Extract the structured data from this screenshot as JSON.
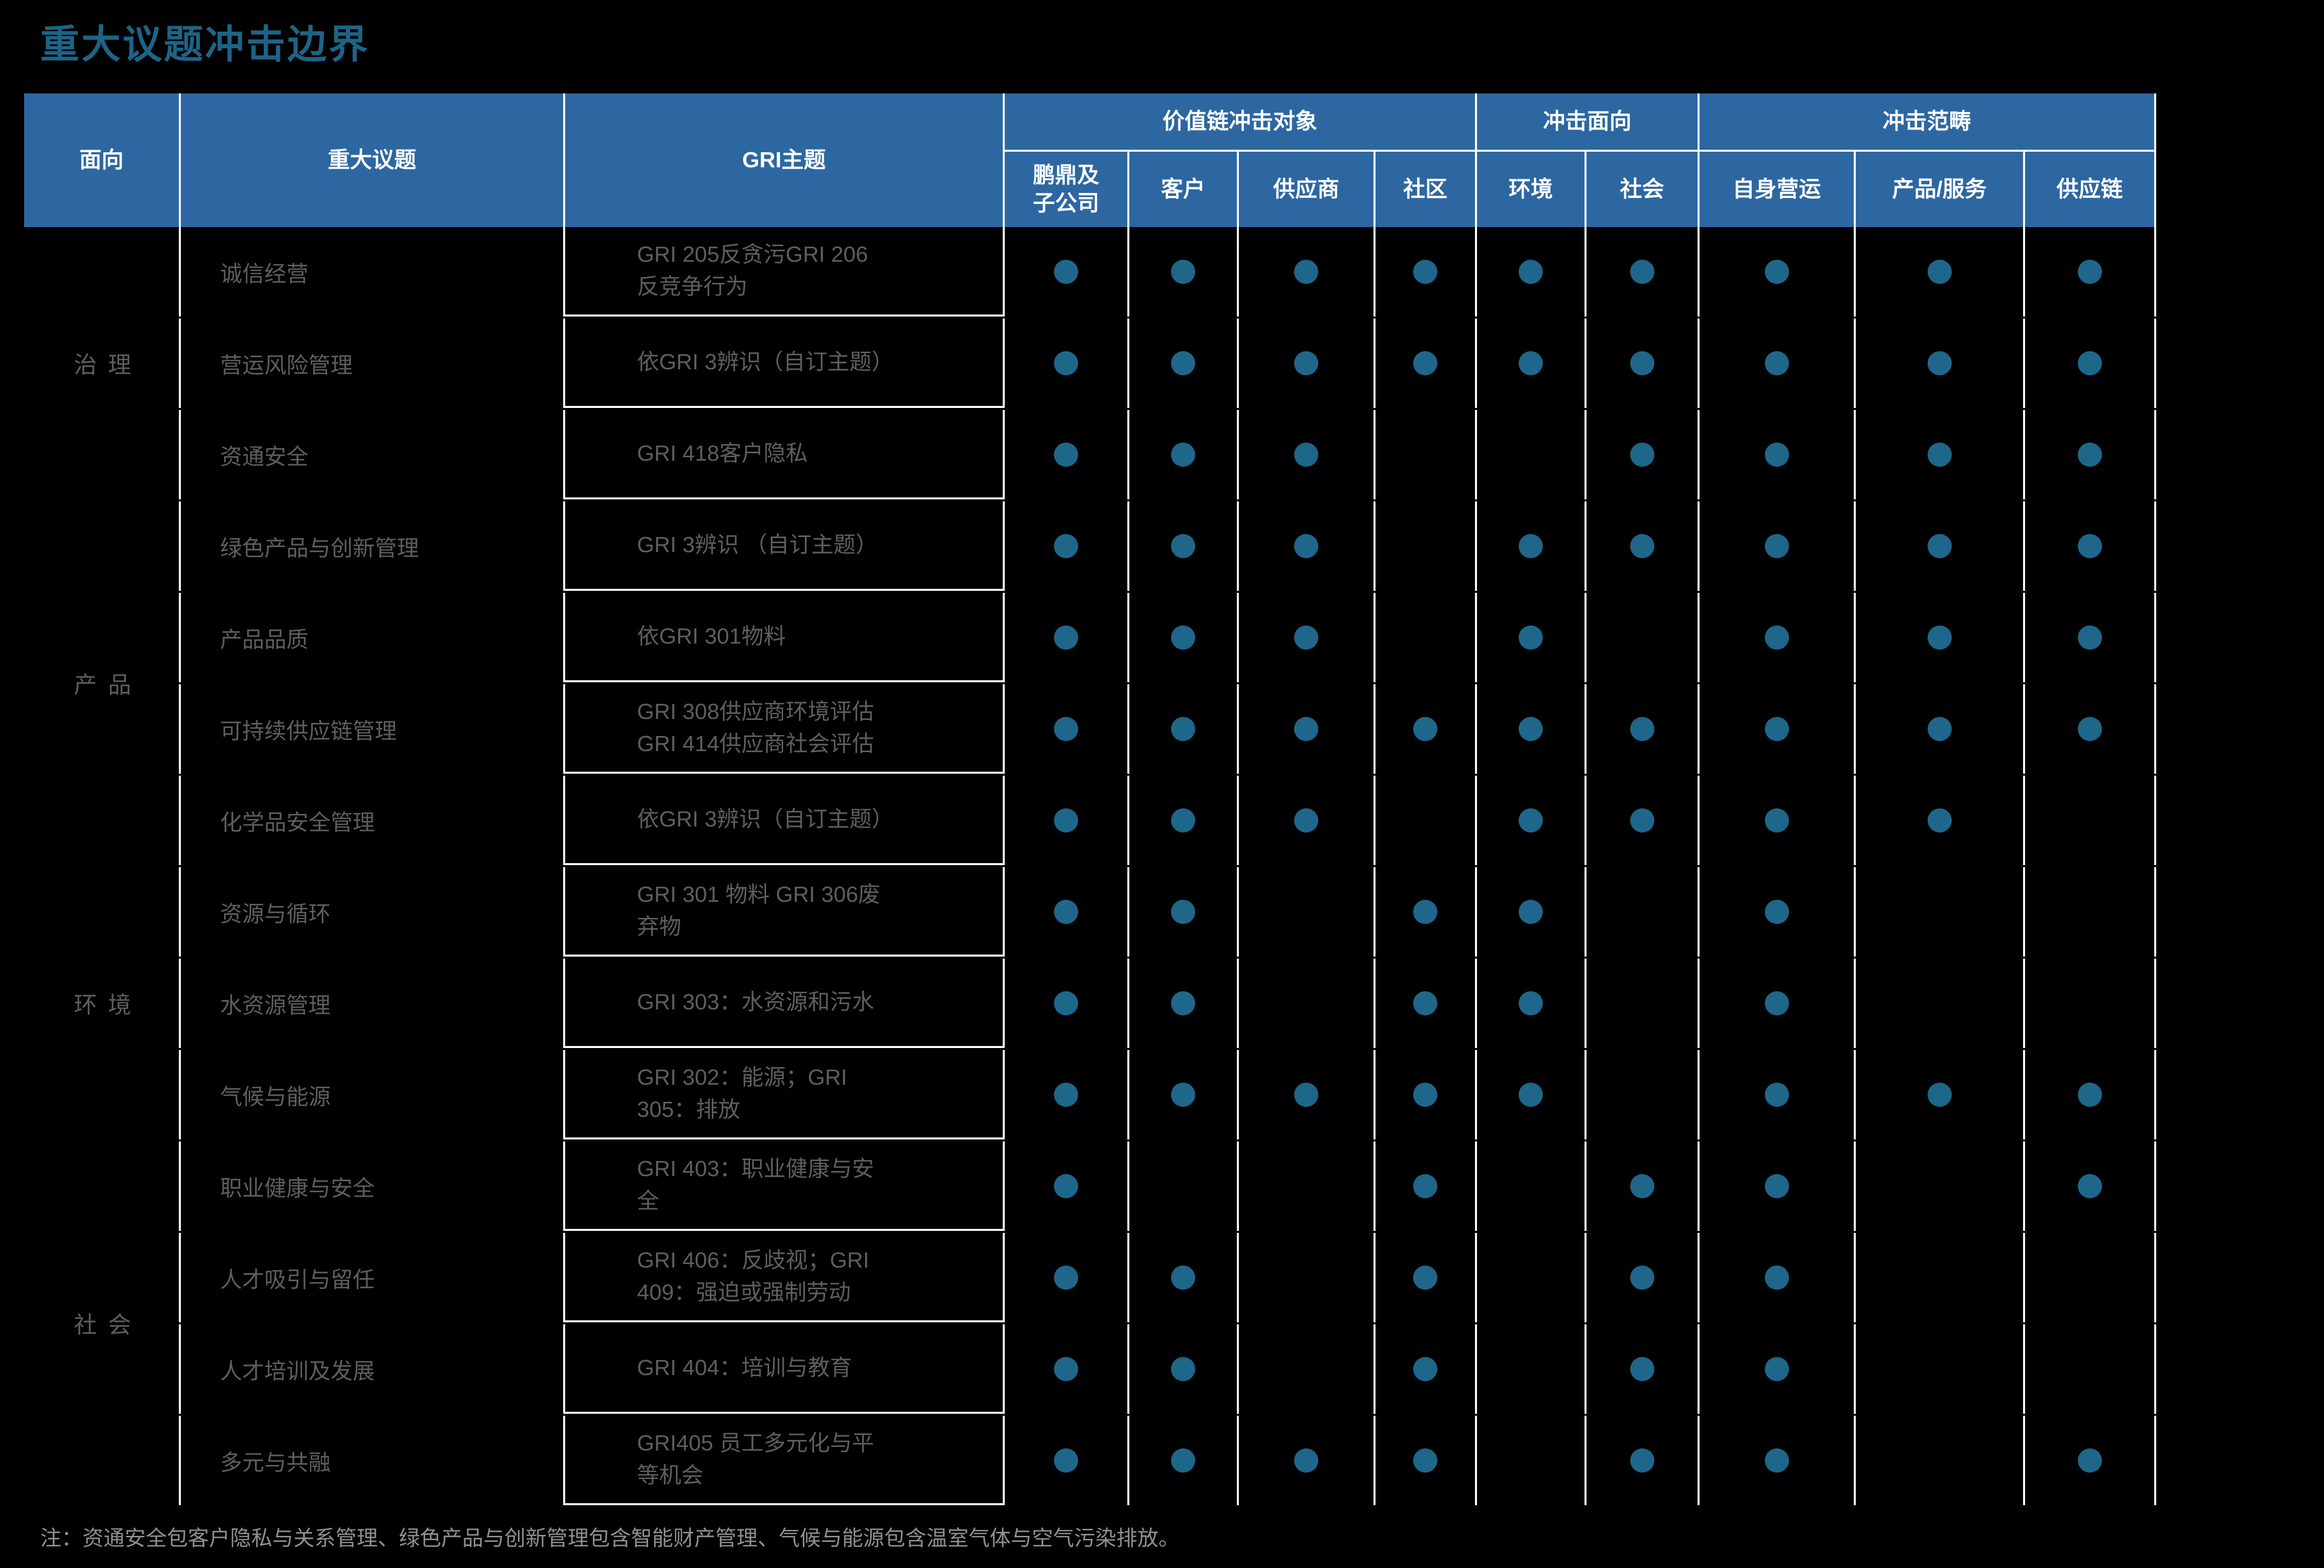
{
  "title": "重大议题冲击边界",
  "note": "注：资通安全包客户隐私与关系管理、绿色产品与创新管理包含智能财产管理、气候与能源包含温室气体与空气污染排放。",
  "colors": {
    "header_bg": "#2d67a1",
    "dot": "#1e678a",
    "title_text": "#1d6486",
    "cell_text": "#5e5e5e",
    "note_text": "#8f8f8f",
    "grid_line": "#ffffff"
  },
  "table": {
    "columns": {
      "aspect": "面向",
      "issue": "重大议题",
      "gri": "GRI主题"
    },
    "header_groups": [
      {
        "label": "价值链冲击对象",
        "span": 4
      },
      {
        "label": "冲击面向",
        "span": 2
      },
      {
        "label": "冲击范畴",
        "span": 3
      }
    ],
    "impact_columns": [
      "鹏鼎及\n子公司",
      "客户",
      "供应商",
      "社区",
      "环境",
      "社会",
      "自身营运",
      "产品/服务",
      "供应链"
    ],
    "groups": [
      {
        "aspect": "治理",
        "rows": [
          {
            "issue": "诚信经营",
            "gri": "GRI 205反贪污GRI 206\n反竞争行为",
            "dots": [
              1,
              1,
              1,
              1,
              1,
              1,
              1,
              1,
              1
            ]
          },
          {
            "issue": "营运风险管理",
            "gri": "依GRI 3辨识（自订主题）",
            "dots": [
              1,
              1,
              1,
              1,
              1,
              1,
              1,
              1,
              1
            ]
          },
          {
            "issue": "资通安全",
            "gri": "GRI 418客户隐私",
            "dots": [
              1,
              1,
              1,
              0,
              0,
              1,
              1,
              1,
              1
            ]
          }
        ]
      },
      {
        "aspect": "产品",
        "rows": [
          {
            "issue": "绿色产品与创新管理",
            "gri": "GRI 3辨识 （自订主题）",
            "dots": [
              1,
              1,
              1,
              0,
              1,
              1,
              1,
              1,
              1
            ]
          },
          {
            "issue": "产品品质",
            "gri": "依GRI 301物料",
            "dots": [
              1,
              1,
              1,
              0,
              1,
              0,
              1,
              1,
              1
            ]
          },
          {
            "issue": "可持续供应链管理",
            "gri": "GRI 308供应商环境评估\nGRI 414供应商社会评估",
            "dots": [
              1,
              1,
              1,
              1,
              1,
              1,
              1,
              1,
              1
            ]
          },
          {
            "issue": "化学品安全管理",
            "gri": "依GRI 3辨识（自订主题）",
            "dots": [
              1,
              1,
              1,
              0,
              1,
              1,
              1,
              1,
              0
            ]
          }
        ]
      },
      {
        "aspect": "环境",
        "rows": [
          {
            "issue": "资源与循环",
            "gri": "GRI 301 物料 GRI 306废\n弃物",
            "dots": [
              1,
              1,
              0,
              1,
              1,
              0,
              1,
              0,
              0
            ]
          },
          {
            "issue": "水资源管理",
            "gri": "GRI 303：水资源和污水",
            "dots": [
              1,
              1,
              0,
              1,
              1,
              0,
              1,
              0,
              0
            ]
          },
          {
            "issue": "气候与能源",
            "gri": "GRI 302：能源；GRI\n305：排放",
            "dots": [
              1,
              1,
              1,
              1,
              1,
              0,
              1,
              1,
              1
            ]
          }
        ]
      },
      {
        "aspect": "社会",
        "rows": [
          {
            "issue": "职业健康与安全",
            "gri": "GRI 403：职业健康与安\n全",
            "dots": [
              1,
              0,
              0,
              1,
              0,
              1,
              1,
              0,
              1
            ]
          },
          {
            "issue": "人才吸引与留任",
            "gri": "GRI 406：反歧视；GRI\n409：强迫或强制劳动",
            "dots": [
              1,
              1,
              0,
              1,
              0,
              1,
              1,
              0,
              0
            ]
          },
          {
            "issue": "人才培训及发展",
            "gri": "GRI 404：培训与教育",
            "dots": [
              1,
              1,
              0,
              1,
              0,
              1,
              1,
              0,
              0
            ]
          },
          {
            "issue": "多元与共融",
            "gri": "GRI405 员工多元化与平\n等机会",
            "dots": [
              1,
              1,
              1,
              1,
              0,
              1,
              1,
              0,
              1
            ]
          }
        ]
      }
    ]
  }
}
